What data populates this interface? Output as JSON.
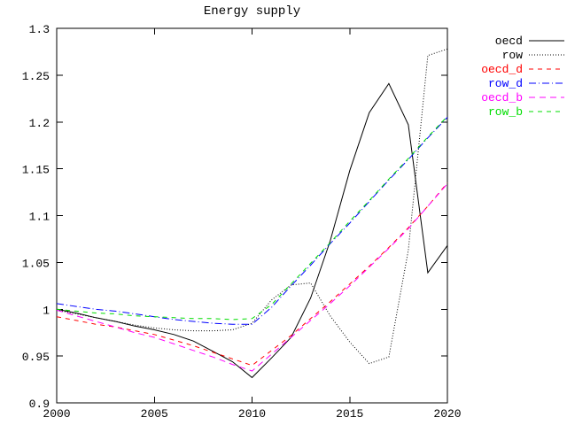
{
  "window": {
    "background": "#ffffff",
    "foreground": "#000000"
  },
  "chart_data": {
    "type": "line",
    "title": "Energy supply",
    "grid": false,
    "legend_position": "outside-top-right",
    "xlim": [
      2000,
      2020
    ],
    "ylim": [
      0.9,
      1.3
    ],
    "xticks": [
      2000,
      2005,
      2010,
      2015,
      2020
    ],
    "xtick_labels": [
      "2000",
      "2005",
      "2010",
      "2015",
      "2020"
    ],
    "yticks": [
      0.9,
      0.95,
      1.0,
      1.05,
      1.1,
      1.15,
      1.2,
      1.25,
      1.3
    ],
    "ytick_labels": [
      "0.9",
      "0.95",
      "1",
      "1.05",
      "1.1",
      "1.15",
      "1.2",
      "1.25",
      "1.3"
    ],
    "x": [
      2000,
      2001,
      2002,
      2003,
      2004,
      2005,
      2006,
      2007,
      2008,
      2009,
      2010,
      2011,
      2012,
      2013,
      2014,
      2015,
      2016,
      2017,
      2018,
      2019,
      2020
    ],
    "series": [
      {
        "name": "oecd",
        "color": "#000000",
        "dash": "solid",
        "values": [
          1.0,
          0.996,
          0.991,
          0.987,
          0.982,
          0.978,
          0.973,
          0.966,
          0.955,
          0.944,
          0.927,
          0.948,
          0.97,
          1.012,
          1.073,
          1.148,
          1.21,
          1.241,
          1.197,
          1.039,
          1.068
        ]
      },
      {
        "name": "row",
        "color": "#000000",
        "dash": "dotted",
        "values": [
          0.999,
          0.995,
          0.991,
          0.987,
          0.983,
          0.98,
          0.978,
          0.977,
          0.977,
          0.978,
          0.985,
          1.01,
          1.026,
          1.028,
          0.993,
          0.965,
          0.942,
          0.949,
          1.063,
          1.271,
          1.278
        ]
      },
      {
        "name": "oecd_d",
        "color": "#ff0000",
        "dash": "dashed",
        "values": [
          0.992,
          0.988,
          0.984,
          0.981,
          0.977,
          0.973,
          0.967,
          0.961,
          0.954,
          0.947,
          0.94,
          0.956,
          0.972,
          0.99,
          1.008,
          1.027,
          1.046,
          1.066,
          1.087,
          1.11,
          1.135
        ]
      },
      {
        "name": "row_d",
        "color": "#0000ff",
        "dash": "dashdot",
        "values": [
          1.006,
          1.003,
          1.0,
          0.998,
          0.995,
          0.992,
          0.989,
          0.987,
          0.985,
          0.984,
          0.984,
          1.002,
          1.025,
          1.047,
          1.07,
          1.092,
          1.115,
          1.138,
          1.16,
          1.183,
          1.205
        ]
      },
      {
        "name": "oecd_b",
        "color": "#ff00ff",
        "dash": "longdash",
        "values": [
          0.999,
          0.993,
          0.987,
          0.981,
          0.975,
          0.97,
          0.963,
          0.956,
          0.949,
          0.941,
          0.934,
          0.952,
          0.97,
          0.988,
          1.006,
          1.025,
          1.045,
          1.065,
          1.086,
          1.11,
          1.134
        ]
      },
      {
        "name": "row_b",
        "color": "#00dd00",
        "dash": "dashed",
        "values": [
          1.0,
          0.998,
          0.996,
          0.995,
          0.993,
          0.992,
          0.991,
          0.99,
          0.99,
          0.989,
          0.99,
          1.005,
          1.027,
          1.049,
          1.071,
          1.094,
          1.116,
          1.139,
          1.161,
          1.184,
          1.206
        ]
      }
    ]
  }
}
